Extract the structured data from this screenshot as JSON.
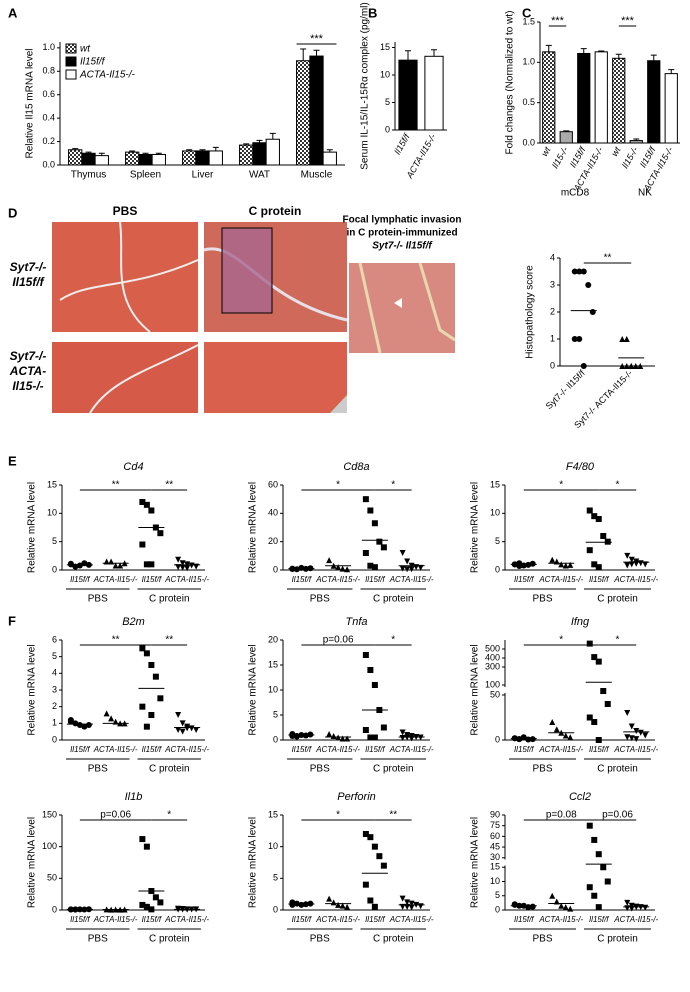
{
  "chart_data": [
    {
      "type": "bar",
      "panel": "A",
      "ylabel": "Relative Il15 mRNA level",
      "categories": [
        "Thymus",
        "Spleen",
        "Liver",
        "WAT",
        "Muscle"
      ],
      "series": [
        {
          "name": "wt",
          "color": "checker",
          "values": [
            0.13,
            0.11,
            0.12,
            0.17,
            0.89
          ],
          "errors": [
            0.01,
            0.01,
            0.01,
            0.01,
            0.1
          ]
        },
        {
          "name": "Il15f/f",
          "color": "#000000",
          "values": [
            0.1,
            0.09,
            0.12,
            0.19,
            0.93
          ],
          "errors": [
            0.01,
            0.01,
            0.01,
            0.02,
            0.05
          ]
        },
        {
          "name": "ACTA-Il15-/-",
          "color": "#ffffff",
          "values": [
            0.08,
            0.09,
            0.12,
            0.22,
            0.11
          ],
          "errors": [
            0.02,
            0.01,
            0.03,
            0.05,
            0.02
          ]
        }
      ],
      "ylim": [
        0,
        1.05
      ],
      "yticks": [
        {
          "value": 0,
          "label": "0.0"
        },
        0.2,
        0.4,
        0.6,
        0.8,
        {
          "value": 1,
          "label": "1.0"
        }
      ],
      "annotations": [
        "***"
      ]
    },
    {
      "type": "bar",
      "panel": "B",
      "ylabel": "Serum IL-15/IL-15Rα complex (pg/ml)",
      "categories": [
        "Il15f/f",
        "ACTA-Il15-/-"
      ],
      "values": [
        12.7,
        13.4
      ],
      "errors": [
        1.7,
        1.2
      ],
      "colors": [
        "#000000",
        "#ffffff"
      ],
      "ylim": [
        0,
        16
      ],
      "yticks": [
        0,
        5,
        10,
        15
      ]
    },
    {
      "type": "bar",
      "panel": "C",
      "ylabel": "Fold changes (Normalized to wt)",
      "categories": [
        "wt",
        "Il15-/-",
        "Il15f/f",
        "ACTA-Il15-/-",
        "wt",
        "Il15-/-",
        "Il15f/f",
        "ACTA-Il15-/-"
      ],
      "groups": [
        "mCD8",
        "NK"
      ],
      "values": [
        1.13,
        0.14,
        1.11,
        1.13,
        1.05,
        0.03,
        1.02,
        0.86
      ],
      "errors": [
        0.08,
        0.01,
        0.06,
        0.01,
        0.05,
        0.02,
        0.07,
        0.05
      ],
      "colors": [
        "checker",
        "#aaaaaa",
        "#000000",
        "#ffffff"
      ],
      "ylim": [
        0,
        1.5
      ],
      "yticks": [
        {
          "value": 0,
          "label": "0.0"
        },
        0.5,
        {
          "value": 1,
          "label": "1.0"
        },
        1.5
      ],
      "annotations": [
        "***",
        "***"
      ]
    },
    {
      "type": "dot",
      "ylabel": "Histopathology score",
      "categories": [
        "Syt7-/- Il15f/f",
        "Syt7-/- ACTA-Il15-/-"
      ],
      "markers": [
        "circle",
        "triangle"
      ],
      "points": [
        [
          3.5,
          3.5,
          3.5,
          3,
          2,
          1,
          1,
          0
        ],
        [
          1,
          1,
          0,
          0,
          0,
          0,
          0,
          0
        ]
      ],
      "means": [
        2.05,
        0.3
      ],
      "ylim": [
        0,
        4
      ],
      "yticks": [
        0,
        1,
        2,
        3,
        4
      ],
      "annotations": [
        "**"
      ]
    },
    {
      "type": "dot",
      "panel": "E",
      "title": "Cd4",
      "ylabel": "Relative mRNA level",
      "categories": [
        "Il15f/f",
        "ACTA-Il15-/-",
        "Il15f/f",
        "ACTA-Il15-/-"
      ],
      "groups": [
        "PBS",
        "C protein"
      ],
      "markers": [
        "circle",
        "triangle",
        "square",
        "down"
      ],
      "points": [
        [
          1,
          0.6,
          0.8,
          1.2,
          0.9,
          1.1
        ],
        [
          1.5,
          1.5,
          0.8,
          0.8,
          1.2
        ],
        [
          12,
          11.5,
          10.5,
          7.5,
          6.5,
          4.5,
          1,
          1
        ],
        [
          1.8,
          1.2,
          1,
          0.8,
          0.6,
          0.5,
          0.4,
          0.3
        ]
      ],
      "means": [
        0.9,
        1.2,
        7.5,
        0.9
      ],
      "ylim": [
        0,
        15
      ],
      "yticks": [
        0,
        5,
        10,
        15
      ],
      "annotations": [
        "**",
        "**"
      ]
    },
    {
      "type": "dot",
      "title": "Cd8a",
      "ylabel": "Relative mRNA level",
      "categories": [
        "Il15f/f",
        "ACTA-Il15-/-",
        "Il15f/f",
        "ACTA-Il15-/-"
      ],
      "groups": [
        "PBS",
        "C protein"
      ],
      "markers": [
        "circle",
        "triangle",
        "square",
        "down"
      ],
      "points": [
        [
          1,
          0.5,
          1.5,
          0.8,
          1.2,
          0.7
        ],
        [
          7,
          3,
          2,
          1,
          0.5
        ],
        [
          50,
          42,
          33,
          20,
          16,
          12,
          3,
          2
        ],
        [
          12,
          6,
          3,
          2,
          1.5,
          1,
          0.5,
          0.5
        ]
      ],
      "means": [
        1,
        3,
        21,
        3
      ],
      "ylim": [
        0,
        60
      ],
      "yticks": [
        0,
        20,
        40,
        60
      ],
      "annotations": [
        "*",
        "*"
      ]
    },
    {
      "type": "dot",
      "title": "F4/80",
      "ylabel": "Relative mRNA level",
      "categories": [
        "Il15f/f",
        "ACTA-Il15-/-",
        "Il15f/f",
        "ACTA-Il15-/-"
      ],
      "groups": [
        "PBS",
        "C protein"
      ],
      "markers": [
        "circle",
        "triangle",
        "square",
        "down"
      ],
      "points": [
        [
          1,
          1.2,
          0.8,
          0.9,
          1.1,
          1,
          0.7
        ],
        [
          1.8,
          1.5,
          1,
          0.8,
          0.9
        ],
        [
          10.5,
          9.5,
          9,
          6,
          5,
          3.5,
          1,
          0.5
        ],
        [
          2.5,
          1.8,
          1.5,
          1.2,
          1,
          0.8,
          1,
          1.1
        ]
      ],
      "means": [
        1,
        1.2,
        4.9,
        1.4
      ],
      "ylim": [
        0,
        15
      ],
      "yticks": [
        0,
        5,
        10,
        15
      ],
      "annotations": [
        "*",
        "*"
      ]
    },
    {
      "type": "dot",
      "panel": "F",
      "title": "B2m",
      "ylabel": "Relative mRNA level",
      "categories": [
        "Il15f/f",
        "ACTA-Il15-/-",
        "Il15f/f",
        "ACTA-Il15-/-"
      ],
      "groups": [
        "PBS",
        "C protein"
      ],
      "markers": [
        "circle",
        "triangle",
        "square",
        "down"
      ],
      "points": [
        [
          1.2,
          1,
          0.9,
          0.8,
          0.9,
          1.1
        ],
        [
          1.6,
          1.3,
          1.1,
          1,
          1
        ],
        [
          5.5,
          5.2,
          4.5,
          3.8,
          2.5,
          2,
          0.8,
          1.5
        ],
        [
          1.5,
          1,
          0.8,
          0.7,
          0.6,
          0.6,
          0.5,
          0.7
        ]
      ],
      "means": [
        0.95,
        1,
        3.1,
        0.75
      ],
      "ylim": [
        0,
        6
      ],
      "yticks": [
        0,
        1,
        2,
        3,
        4,
        5,
        6
      ],
      "annotations": [
        "**",
        "**"
      ]
    },
    {
      "type": "dot",
      "title": "Tnfa",
      "ylabel": "Relative mRNA level",
      "categories": [
        "Il15f/f",
        "ACTA-Il15-/-",
        "Il15f/f",
        "ACTA-Il15-/-"
      ],
      "groups": [
        "PBS",
        "C protein"
      ],
      "markers": [
        "circle",
        "triangle",
        "square",
        "down"
      ],
      "points": [
        [
          1.2,
          0.8,
          1,
          0.9,
          1.1,
          0.8,
          0.7
        ],
        [
          1.2,
          0.8,
          0.5,
          0.3,
          0.3
        ],
        [
          17,
          14,
          11,
          6,
          2.5,
          2,
          0.5,
          0.5
        ],
        [
          1.5,
          1,
          0.8,
          0.6,
          0.5,
          0.4,
          0.5,
          0.3
        ]
      ],
      "means": [
        1,
        0.6,
        6,
        0.6
      ],
      "ylim": [
        0,
        20
      ],
      "yticks": [
        0,
        5,
        10,
        15,
        20
      ],
      "annotations": [
        "p=0.06",
        "*"
      ]
    },
    {
      "type": "dot",
      "title": "Ifng",
      "ylabel": "Relative mRNA level",
      "categories": [
        "Il15f/f",
        "ACTA-Il15-/-",
        "Il15f/f",
        "ACTA-Il15-/-"
      ],
      "groups": [
        "PBS",
        "C protein"
      ],
      "markers": [
        "circle",
        "triangle",
        "square",
        "down"
      ],
      "points": [
        [
          2,
          1,
          3,
          0.5,
          1,
          2,
          1
        ],
        [
          20,
          12,
          8,
          5,
          3
        ],
        [
          560,
          410,
          360,
          70,
          40,
          25,
          20,
          0
        ],
        [
          30,
          15,
          10,
          8,
          5,
          3,
          2,
          1
        ]
      ],
      "means": [
        1.5,
        8,
        130,
        9
      ],
      "ylim": [
        0,
        600
      ],
      "ybreak": [
        50,
        100
      ],
      "yticks": [
        0,
        50,
        100,
        300,
        400,
        500
      ],
      "annotations": [
        "*",
        "*"
      ]
    },
    {
      "type": "dot",
      "title": "Il1b",
      "ylabel": "Relative mRNA level",
      "categories": [
        "Il15f/f",
        "ACTA-Il15-/-",
        "Il15f/f",
        "ACTA-Il15-/-"
      ],
      "groups": [
        "PBS",
        "C protein"
      ],
      "markers": [
        "circle",
        "triangle",
        "square",
        "down"
      ],
      "points": [
        [
          1,
          0.5,
          1,
          0.8,
          1.2,
          0.7,
          0.9
        ],
        [
          1,
          0.5,
          0.8,
          0.6,
          0.7
        ],
        [
          112,
          100,
          30,
          20,
          12,
          8,
          5,
          1
        ],
        [
          2,
          1.5,
          1,
          0.8,
          1,
          0.5,
          0.7,
          0.6
        ]
      ],
      "means": [
        0.9,
        0.7,
        30,
        1
      ],
      "ylim": [
        0,
        150
      ],
      "yticks": [
        0,
        50,
        100,
        150
      ],
      "annotations": [
        "p=0.06",
        "*"
      ]
    },
    {
      "type": "dot",
      "title": "Perforin",
      "ylabel": "Relative mRNA level",
      "categories": [
        "Il15f/f",
        "ACTA-Il15-/-",
        "Il15f/f",
        "ACTA-Il15-/-"
      ],
      "groups": [
        "PBS",
        "C protein"
      ],
      "markers": [
        "circle",
        "triangle",
        "square",
        "down"
      ],
      "points": [
        [
          1.2,
          1,
          0.8,
          0.9,
          1,
          0.8
        ],
        [
          1.8,
          1.2,
          0.8,
          0.7,
          0.5
        ],
        [
          12,
          11.5,
          10,
          8.5,
          7,
          4,
          1.5,
          0.5
        ],
        [
          1.8,
          1.2,
          1,
          0.8,
          0.6,
          0.5,
          0.5,
          0.4
        ]
      ],
      "means": [
        0.95,
        1,
        5.8,
        0.8
      ],
      "ylim": [
        0,
        15
      ],
      "yticks": [
        0,
        5,
        10,
        15
      ],
      "annotations": [
        "*",
        "**"
      ]
    },
    {
      "type": "dot",
      "title": "Ccl2",
      "ylabel": "Relative mRNA level",
      "categories": [
        "Il15f/f",
        "ACTA-Il15-/-",
        "Il15f/f",
        "ACTA-Il15-/-"
      ],
      "groups": [
        "PBS",
        "C protein"
      ],
      "markers": [
        "circle",
        "triangle",
        "square",
        "down"
      ],
      "points": [
        [
          2,
          1.5,
          1.5,
          1,
          1.2,
          1.8
        ],
        [
          5,
          3,
          1.5,
          1,
          0.5
        ],
        [
          75,
          55,
          35,
          15,
          10,
          8,
          5,
          1
        ],
        [
          2.5,
          1.5,
          1.2,
          1,
          0.8,
          0.6,
          0.5,
          1
        ]
      ],
      "means": [
        1.5,
        2.3,
        20,
        1.1
      ],
      "ylim": [
        0,
        90
      ],
      "ybreak": [
        15,
        30
      ],
      "yticks": [
        0,
        5,
        10,
        15,
        30,
        45,
        60,
        75,
        90
      ],
      "annotations": [
        "p=0.08",
        "p=0.06"
      ]
    }
  ],
  "figure_d": {
    "panel": "D",
    "columns": [
      "PBS",
      "C protein"
    ],
    "rows": [
      [
        "Syt7-/-",
        "Il15f/f"
      ],
      [
        "Syt7-/-",
        "ACTA-",
        "Il15-/-"
      ]
    ],
    "inset_title": [
      "Focal lymphatic invasion",
      "in C protein-immunized",
      "Syt7-/- Il15f/f"
    ]
  }
}
